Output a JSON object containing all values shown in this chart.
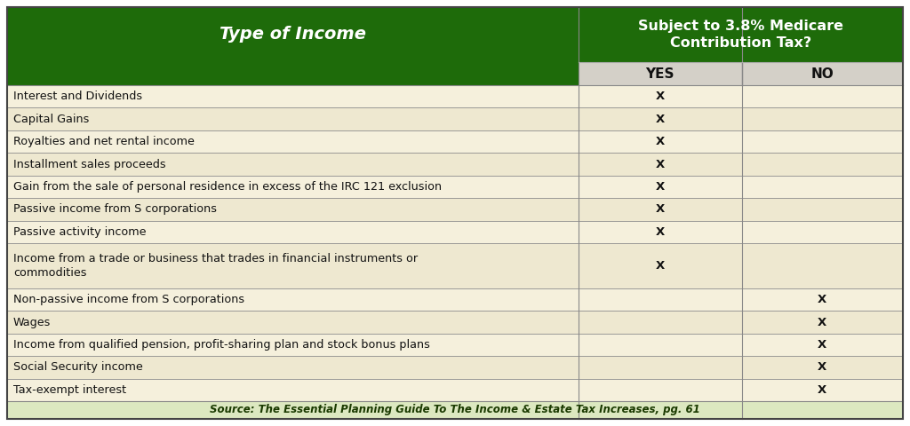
{
  "header_col1": "Type of Income",
  "header_col2_line1": "Subject to 3.8% Medicare",
  "header_col2_line2": "Contribution Tax?",
  "sub_header_yes": "YES",
  "sub_header_no": "NO",
  "rows": [
    {
      "income": "Interest and Dividends",
      "yes": true,
      "no": false
    },
    {
      "income": "Capital Gains",
      "yes": true,
      "no": false
    },
    {
      "income": "Royalties and net rental income",
      "yes": true,
      "no": false
    },
    {
      "income": "Installment sales proceeds",
      "yes": true,
      "no": false
    },
    {
      "income": "Gain from the sale of personal residence in excess of the IRC 121 exclusion",
      "yes": true,
      "no": false
    },
    {
      "income": "Passive income from S corporations",
      "yes": true,
      "no": false
    },
    {
      "income": "Passive activity income",
      "yes": true,
      "no": false
    },
    {
      "income": "Income from a trade or business that trades in financial instruments or\ncommodities",
      "yes": true,
      "no": false
    },
    {
      "income": "Non-passive income from S corporations",
      "yes": false,
      "no": true
    },
    {
      "income": "Wages",
      "yes": false,
      "no": true
    },
    {
      "income": "Income from qualified pension, profit-sharing plan and stock bonus plans",
      "yes": false,
      "no": true
    },
    {
      "income": "Social Security income",
      "yes": false,
      "no": true
    },
    {
      "income": "Tax-exempt interest",
      "yes": false,
      "no": true
    }
  ],
  "footer": "Source: The Essential Planning Guide To The Income & Estate Tax Increases, pg. 61",
  "dark_green": "#1e6b0a",
  "row_bg_even": "#f5f0dc",
  "row_bg_odd": "#eee8d0",
  "subheader_bg": "#d4d0c8",
  "border_color": "#888888",
  "footer_bg": "#dce8c0",
  "header_text": "#ffffff",
  "subheader_text": "#111111",
  "row_text": "#111111"
}
